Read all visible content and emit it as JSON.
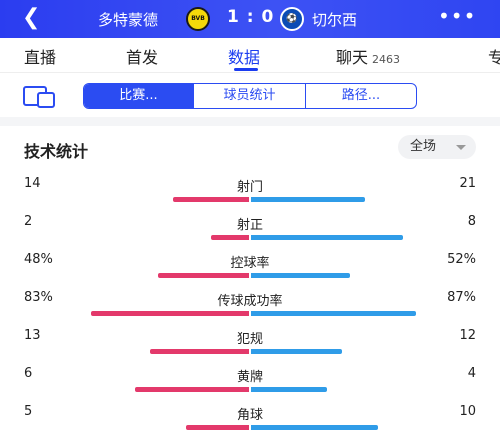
{
  "header": {
    "back_icon": "chevron-left-icon",
    "home_team": "多特蒙德",
    "score": "1 : 0",
    "away_team": "切尔西",
    "home_crest_text": "BVB",
    "away_crest_text": "⚽",
    "more_icon": "more-dots-icon",
    "more_text": "•••"
  },
  "tabs": [
    {
      "label": "直播"
    },
    {
      "label": "首发"
    },
    {
      "label": "数据"
    },
    {
      "label": "聊天",
      "count": "2463"
    },
    {
      "label": "专"
    }
  ],
  "segments": {
    "device_icon": "split-screen-icon",
    "items": [
      "比赛...",
      "球员统计",
      "路径..."
    ],
    "active_index": 0
  },
  "stats": {
    "title": "技术统计",
    "scope": "全场",
    "rows": [
      {
        "label": "射门",
        "home": "14",
        "away": "21",
        "home_frac": 0.4,
        "away_frac": 0.6
      },
      {
        "label": "射正",
        "home": "2",
        "away": "8",
        "home_frac": 0.2,
        "away_frac": 0.8
      },
      {
        "label": "控球率",
        "home": "48%",
        "away": "52%",
        "home_frac": 0.48,
        "away_frac": 0.52
      },
      {
        "label": "传球成功率",
        "home": "83%",
        "away": "87%",
        "home_frac": 0.83,
        "away_frac": 0.87
      },
      {
        "label": "犯规",
        "home": "13",
        "away": "12",
        "home_frac": 0.52,
        "away_frac": 0.48
      },
      {
        "label": "黄牌",
        "home": "6",
        "away": "4",
        "home_frac": 0.6,
        "away_frac": 0.4
      },
      {
        "label": "角球",
        "home": "5",
        "away": "10",
        "home_frac": 0.33,
        "away_frac": 0.67
      }
    ]
  },
  "colors": {
    "header": "#2f45f2",
    "active_tab": "#1b3cf0",
    "home_bar": "#e3396b",
    "away_bar": "#2f9ce8"
  }
}
